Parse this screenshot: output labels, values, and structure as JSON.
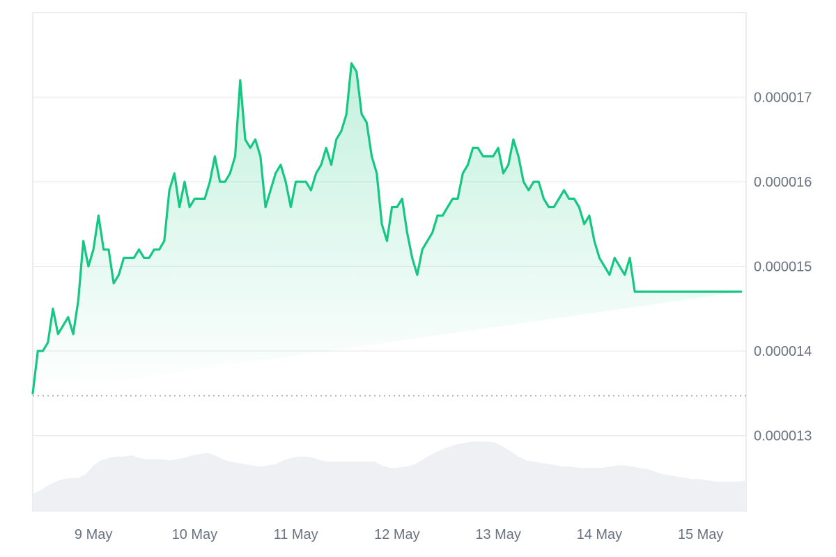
{
  "chart_data": {
    "type": "area",
    "title": "",
    "xlabel": "",
    "ylabel": "",
    "x_tick_labels": [
      "9 May",
      "10 May",
      "11 May",
      "12 May",
      "13 May",
      "14 May",
      "15 May"
    ],
    "y_tick_labels": [
      "0.000013",
      "0.000014",
      "0.000015",
      "0.000016",
      "0.000017"
    ],
    "x_ticks_day": [
      9,
      10,
      11,
      12,
      13,
      14,
      15
    ],
    "y_ticks": [
      1.3e-05,
      1.4e-05,
      1.5e-05,
      1.6e-05,
      1.7e-05
    ],
    "xlim_day": [
      8.4,
      15.45
    ],
    "ylim": [
      1.21e-05,
      1.8e-05
    ],
    "baseline": 1.347e-05,
    "grid": true,
    "legend": "none",
    "colors": {
      "line": "#16c784",
      "fill_top": "#16c784",
      "volume": "#eef0f4",
      "grid": "#e8eaee",
      "baseline": "#8a8f98",
      "frame": "#dde1e6"
    },
    "series": [
      {
        "day": [
          8.4,
          8.45,
          8.5,
          8.55,
          8.6,
          8.65,
          8.7,
          8.75,
          8.8,
          8.85,
          8.9,
          8.95,
          9.0,
          9.05,
          9.1,
          9.15,
          9.2,
          9.25,
          9.3,
          9.35,
          9.4,
          9.45,
          9.5,
          9.55,
          9.6,
          9.65,
          9.7,
          9.75,
          9.8,
          9.85,
          9.9,
          9.95,
          10.0,
          10.05,
          10.1,
          10.15,
          10.2,
          10.25,
          10.3,
          10.35,
          10.4,
          10.45,
          10.5,
          10.55,
          10.6,
          10.65,
          10.7,
          10.75,
          10.8,
          10.85,
          10.9,
          10.95,
          11.0,
          11.05,
          11.1,
          11.15,
          11.2,
          11.25,
          11.3,
          11.35,
          11.4,
          11.45,
          11.5,
          11.55,
          11.6,
          11.65,
          11.7,
          11.75,
          11.8,
          11.85,
          11.9,
          11.95,
          12.0,
          12.05,
          12.1,
          12.15,
          12.2,
          12.25,
          12.3,
          12.35,
          12.4,
          12.45,
          12.5,
          12.55,
          12.6,
          12.65,
          12.7,
          12.75,
          12.8,
          12.85,
          12.9,
          12.95,
          13.0,
          13.05,
          13.1,
          13.15,
          13.2,
          13.25,
          13.3,
          13.35,
          13.4,
          13.45,
          13.5,
          13.55,
          13.6,
          13.65,
          13.7,
          13.75,
          13.8,
          13.85,
          13.9,
          13.95,
          14.0,
          14.05,
          14.1,
          14.15,
          14.2,
          14.25,
          14.3,
          14.35,
          14.4,
          14.45,
          14.5,
          14.55,
          14.6,
          14.65,
          14.7,
          14.75,
          14.8,
          14.85,
          14.9,
          14.95,
          15.0,
          15.05,
          15.1,
          15.15,
          15.2,
          15.25,
          15.3,
          15.35,
          15.4,
          15.45
        ],
        "values": [
          1.35e-05,
          1.4e-05,
          1.4e-05,
          1.41e-05,
          1.45e-05,
          1.42e-05,
          1.43e-05,
          1.44e-05,
          1.42e-05,
          1.46e-05,
          1.53e-05,
          1.5e-05,
          1.52e-05,
          1.56e-05,
          1.52e-05,
          1.52e-05,
          1.48e-05,
          1.49e-05,
          1.51e-05,
          1.51e-05,
          1.51e-05,
          1.52e-05,
          1.51e-05,
          1.51e-05,
          1.52e-05,
          1.52e-05,
          1.53e-05,
          1.59e-05,
          1.61e-05,
          1.57e-05,
          1.6e-05,
          1.57e-05,
          1.58e-05,
          1.58e-05,
          1.58e-05,
          1.6e-05,
          1.63e-05,
          1.6e-05,
          1.6e-05,
          1.61e-05,
          1.63e-05,
          1.72e-05,
          1.65e-05,
          1.64e-05,
          1.65e-05,
          1.63e-05,
          1.57e-05,
          1.59e-05,
          1.61e-05,
          1.62e-05,
          1.6e-05,
          1.57e-05,
          1.6e-05,
          1.6e-05,
          1.6e-05,
          1.59e-05,
          1.61e-05,
          1.62e-05,
          1.64e-05,
          1.62e-05,
          1.65e-05,
          1.66e-05,
          1.68e-05,
          1.74e-05,
          1.73e-05,
          1.68e-05,
          1.67e-05,
          1.63e-05,
          1.61e-05,
          1.55e-05,
          1.53e-05,
          1.57e-05,
          1.57e-05,
          1.58e-05,
          1.54e-05,
          1.51e-05,
          1.49e-05,
          1.52e-05,
          1.53e-05,
          1.54e-05,
          1.56e-05,
          1.56e-05,
          1.57e-05,
          1.58e-05,
          1.58e-05,
          1.61e-05,
          1.62e-05,
          1.64e-05,
          1.64e-05,
          1.63e-05,
          1.63e-05,
          1.63e-05,
          1.64e-05,
          1.61e-05,
          1.62e-05,
          1.65e-05,
          1.63e-05,
          1.6e-05,
          1.59e-05,
          1.6e-05,
          1.6e-05,
          1.58e-05,
          1.57e-05,
          1.57e-05,
          1.58e-05,
          1.59e-05,
          1.58e-05,
          1.58e-05,
          1.57e-05,
          1.55e-05,
          1.56e-05,
          1.53e-05,
          1.51e-05,
          1.5e-05,
          1.49e-05,
          1.51e-05,
          1.5e-05,
          1.49e-05,
          1.51e-05,
          1.47e-05,
          1.47e-05,
          1.47e-05,
          1.47e-05,
          1.47e-05,
          1.47e-05,
          1.47e-05,
          1.47e-05,
          1.47e-05,
          1.47e-05,
          1.47e-05,
          1.47e-05,
          1.47e-05,
          1.47e-05,
          1.47e-05,
          1.47e-05,
          1.47e-05,
          1.47e-05,
          1.47e-05,
          1.47e-05,
          1.47e-05,
          1.47e-05
        ]
      }
    ],
    "volume_profile": [
      0.14,
      0.17,
      0.21,
      0.24,
      0.26,
      0.27,
      0.27,
      0.3,
      0.37,
      0.41,
      0.43,
      0.44,
      0.44,
      0.45,
      0.43,
      0.42,
      0.42,
      0.42,
      0.41,
      0.42,
      0.43,
      0.45,
      0.46,
      0.47,
      0.45,
      0.42,
      0.4,
      0.39,
      0.38,
      0.37,
      0.36,
      0.37,
      0.38,
      0.41,
      0.43,
      0.44,
      0.44,
      0.43,
      0.41,
      0.4,
      0.4,
      0.4,
      0.4,
      0.4,
      0.4,
      0.4,
      0.37,
      0.35,
      0.35,
      0.36,
      0.37,
      0.4,
      0.44,
      0.47,
      0.5,
      0.52,
      0.54,
      0.55,
      0.56,
      0.56,
      0.56,
      0.55,
      0.52,
      0.48,
      0.44,
      0.41,
      0.4,
      0.39,
      0.38,
      0.37,
      0.36,
      0.36,
      0.35,
      0.35,
      0.35,
      0.35,
      0.36,
      0.37,
      0.37,
      0.36,
      0.35,
      0.34,
      0.32,
      0.3,
      0.29,
      0.28,
      0.27,
      0.26,
      0.26,
      0.25,
      0.24,
      0.24,
      0.24,
      0.24,
      0.25
    ]
  }
}
